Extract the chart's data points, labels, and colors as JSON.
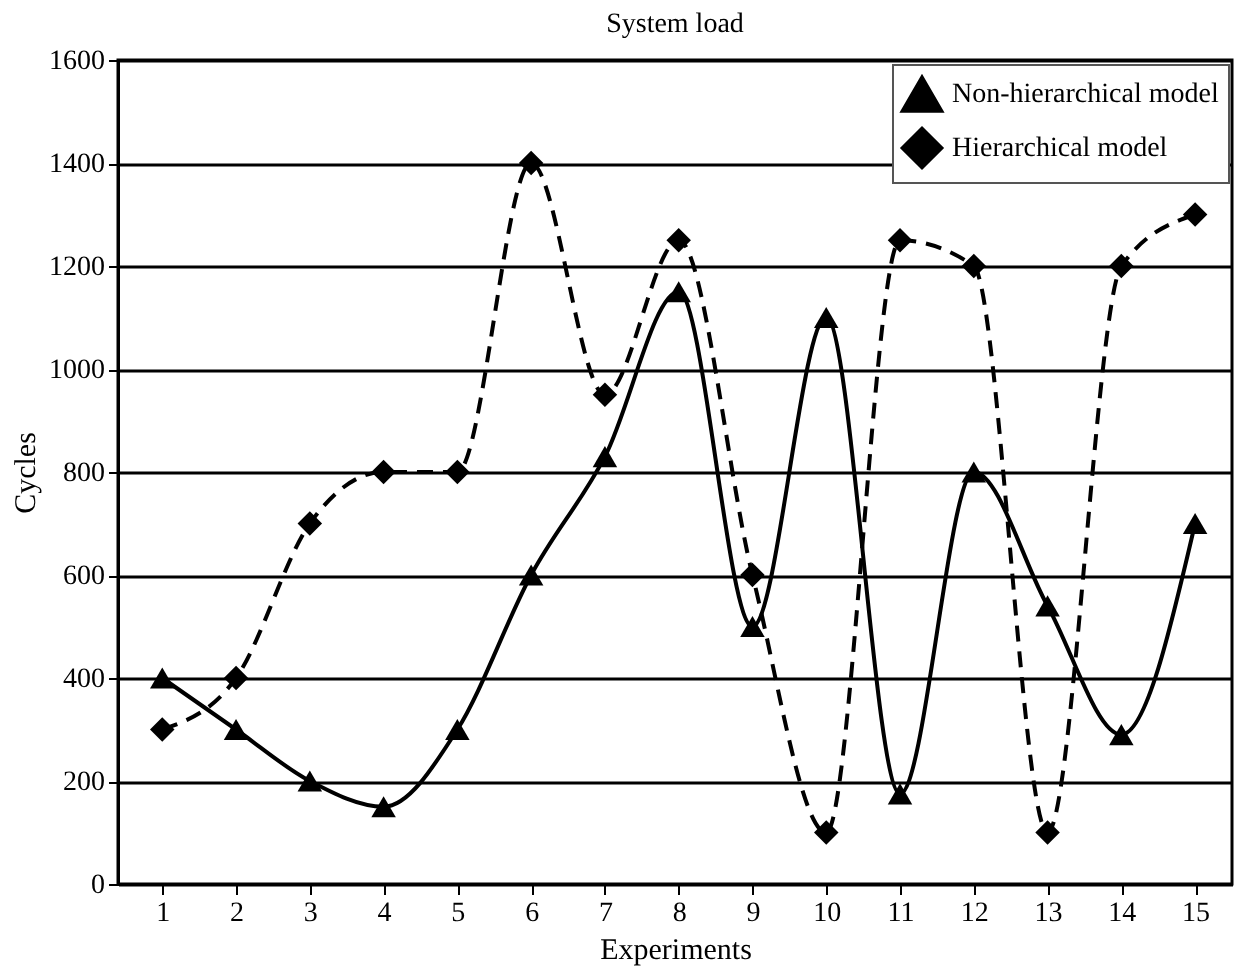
{
  "chart_data": {
    "type": "line",
    "title": "System load",
    "xlabel": "Experiments",
    "ylabel": "Cycles",
    "x": [
      1,
      2,
      3,
      4,
      5,
      6,
      7,
      8,
      9,
      10,
      11,
      12,
      13,
      14,
      15
    ],
    "series": [
      {
        "name": "Non-hierarchical model",
        "color": "#000000",
        "line_style": "solid",
        "marker": "triangle",
        "values": [
          400,
          300,
          200,
          150,
          300,
          600,
          830,
          1150,
          500,
          1100,
          175,
          800,
          540,
          290,
          700
        ]
      },
      {
        "name": "Hierarchical model",
        "color": "#000000",
        "line_style": "dashed",
        "marker": "diamond",
        "values": [
          300,
          400,
          700,
          800,
          800,
          1400,
          950,
          1250,
          600,
          100,
          1250,
          1200,
          100,
          1200,
          1300
        ]
      }
    ],
    "xlim": [
      0.4,
      15.5
    ],
    "xticks": [
      1,
      2,
      3,
      4,
      5,
      6,
      7,
      8,
      9,
      10,
      11,
      12,
      13,
      14,
      15
    ],
    "ylim": [
      0,
      1600
    ],
    "yticks": [
      0,
      200,
      400,
      600,
      800,
      1000,
      1200,
      1400,
      1600
    ],
    "grid": "y",
    "legend": "top right"
  }
}
